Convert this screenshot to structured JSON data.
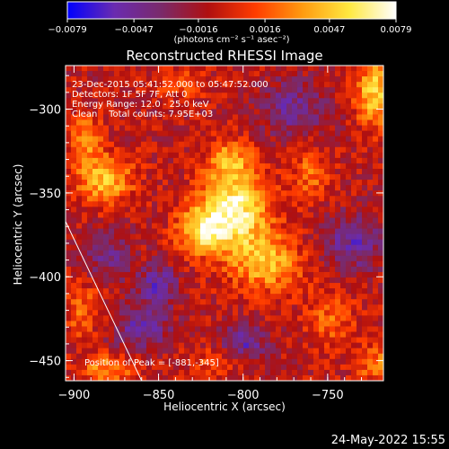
{
  "chart_data": {
    "type": "heatmap",
    "title": "Reconstructed RHESSI Image",
    "xlabel": "Heliocentric X (arcsec)",
    "ylabel": "Heliocentric Y (arcsec)",
    "xlim": [
      -905,
      -717
    ],
    "ylim": [
      -462,
      -274
    ],
    "x_ticks": [
      -900,
      -850,
      -800,
      -750
    ],
    "x_tick_labels": [
      "−900",
      "−850",
      "−800",
      "−750"
    ],
    "y_ticks": [
      -300,
      -350,
      -400,
      -450
    ],
    "y_tick_labels": [
      "−300",
      "−350",
      "−400",
      "−450"
    ],
    "colorbar": {
      "min": -0.0079,
      "max": 0.0079,
      "ticks": [
        -0.0079,
        -0.0047,
        -0.0016,
        0.0016,
        0.0047,
        0.0079
      ],
      "tick_labels": [
        "−0.0079",
        "−0.0047",
        "−0.0016",
        "0.0016",
        "0.0047",
        "0.0079"
      ],
      "units_label": "(photons cm⁻² s⁻¹ asec⁻²)",
      "colors": [
        "#0000ff",
        "#6a2bb0",
        "#7a2a6a",
        "#b01010",
        "#ff3c00",
        "#ff9a10",
        "#ffe840",
        "#ffffff"
      ]
    },
    "annotations": [
      "23-Dec-2015 05:41:52.000 to 05:47:52.000",
      "Detectors: 1F 5F 7F, Att 0",
      "Energy Range: 12.0 - 25.0 keV",
      "Clean    Total counts: 7.95E+03"
    ],
    "peak_label": "Position of Peak = [-881,-345]",
    "peak_position": [
      -881,
      -345
    ],
    "limb_line": [
      [
        -905,
        -367
      ],
      [
        -860,
        -462
      ]
    ],
    "sources": [
      {
        "x": -805,
        "y": -360,
        "sx": 14,
        "sy": 18,
        "amp": 0.0079
      },
      {
        "x": -825,
        "y": -372,
        "sx": 10,
        "sy": 10,
        "amp": 0.0055
      },
      {
        "x": -785,
        "y": -392,
        "sx": 14,
        "sy": 12,
        "amp": 0.005
      },
      {
        "x": -808,
        "y": -330,
        "sx": 8,
        "sy": 8,
        "amp": 0.004
      },
      {
        "x": -760,
        "y": -338,
        "sx": 8,
        "sy": 12,
        "amp": 0.003
      },
      {
        "x": -882,
        "y": -342,
        "sx": 12,
        "sy": 10,
        "amp": 0.0055
      },
      {
        "x": -893,
        "y": -318,
        "sx": 7,
        "sy": 10,
        "amp": 0.004
      },
      {
        "x": -722,
        "y": -290,
        "sx": 8,
        "sy": 14,
        "amp": 0.0062
      },
      {
        "x": -838,
        "y": -285,
        "sx": 12,
        "sy": 6,
        "amp": 0.0025
      },
      {
        "x": -880,
        "y": -455,
        "sx": 12,
        "sy": 6,
        "amp": 0.004
      },
      {
        "x": -895,
        "y": -420,
        "sx": 8,
        "sy": 12,
        "amp": 0.0028
      },
      {
        "x": -748,
        "y": -425,
        "sx": 10,
        "sy": 12,
        "amp": 0.0028
      },
      {
        "x": -722,
        "y": -452,
        "sx": 8,
        "sy": 8,
        "amp": 0.0035
      },
      {
        "x": -815,
        "y": -450,
        "sx": 12,
        "sy": 6,
        "amp": 0.0022
      },
      {
        "x": -850,
        "y": -405,
        "sx": 8,
        "sy": 8,
        "amp": -0.0045
      },
      {
        "x": -770,
        "y": -300,
        "sx": 14,
        "sy": 12,
        "amp": -0.0035
      },
      {
        "x": -735,
        "y": -380,
        "sx": 12,
        "sy": 12,
        "amp": -0.004
      },
      {
        "x": -800,
        "y": -440,
        "sx": 10,
        "sy": 8,
        "amp": -0.004
      },
      {
        "x": -860,
        "y": -430,
        "sx": 12,
        "sy": 10,
        "amp": -0.0038
      },
      {
        "x": -880,
        "y": -388,
        "sx": 10,
        "sy": 10,
        "amp": -0.003
      }
    ]
  },
  "footer": {
    "date": "24-May-2022 15:55"
  }
}
